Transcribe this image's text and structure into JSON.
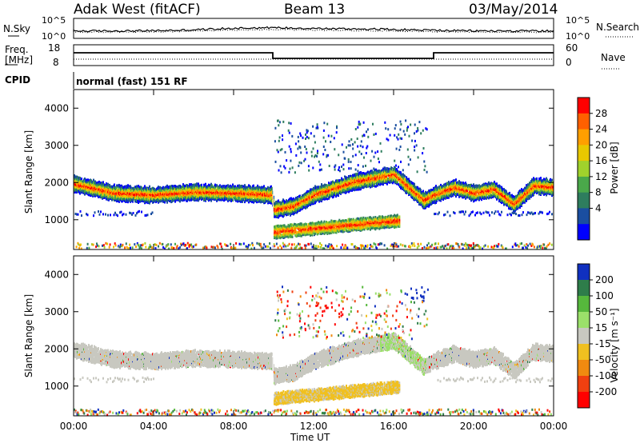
{
  "header": {
    "station": "Adak West (fitACF)",
    "beam": "Beam 13",
    "date": "03/May/2014"
  },
  "panels": {
    "nsky_label": "N.Sky",
    "nsearch_label": "N.Search",
    "noise_ticks": [
      "10^5",
      "10^0"
    ],
    "freq_label_1": "Freq.",
    "freq_label_2": "[MHz]",
    "freq_ticks": [
      "18",
      "8"
    ],
    "nave_label": "Nave",
    "nave_ticks": [
      "60",
      "0"
    ],
    "cpid_label": "CPID",
    "cpid_value": "normal (fast) 151 RF"
  },
  "chart_data": [
    {
      "type": "heatmap",
      "name": "power",
      "ylabel": "Slant Range [km]",
      "colorbar_label": "Power [dB]",
      "colorbar_ticks": [
        "28",
        "24",
        "20",
        "16",
        "12",
        "8",
        "4"
      ],
      "colorbar_colors": [
        "#ff0000",
        "#ff6000",
        "#ff9f00",
        "#e8c800",
        "#a0d22c",
        "#4aa84a",
        "#2e7d5e",
        "#1a4ea0",
        "#0000ff"
      ],
      "ylim": [
        200,
        4500
      ],
      "yticks": [
        1000,
        2000,
        3000,
        4000
      ],
      "xlim": [
        0,
        24
      ],
      "features": [
        {
          "label": "main band",
          "t": [
            0,
            2,
            4,
            6,
            8,
            9.9,
            10,
            11,
            12,
            14,
            16,
            17.5,
            18,
            19,
            20,
            21,
            22,
            23,
            24
          ],
          "range_km": [
            2000,
            1750,
            1700,
            1780,
            1750,
            1700,
            1300,
            1400,
            1700,
            2050,
            2250,
            1550,
            1700,
            1900,
            1750,
            1850,
            1450,
            1950,
            1900
          ]
        },
        {
          "label": "lower band",
          "t": [
            10,
            12,
            14,
            16
          ],
          "range_km": [
            700,
            800,
            900,
            1000
          ]
        }
      ]
    },
    {
      "type": "heatmap",
      "name": "velocity",
      "ylabel": "Slant Range [km]",
      "xlabel": "Time UT",
      "colorbar_label": "Velocity [m s⁻¹]",
      "colorbar_ticks": [
        "200",
        "100",
        "50",
        "15",
        "-15",
        "-50",
        "-100",
        "-200"
      ],
      "colorbar_colors": [
        "#1030c0",
        "#2e7d4a",
        "#56b83c",
        "#9be06a",
        "#c8c8c0",
        "#f0c020",
        "#f08a10",
        "#f04010",
        "#ff0000"
      ],
      "ylim": [
        200,
        4500
      ],
      "yticks": [
        1000,
        2000,
        3000,
        4000
      ],
      "xlim": [
        0,
        24
      ],
      "xticks": [
        "00:00",
        "04:00",
        "08:00",
        "12:00",
        "16:00",
        "20:00",
        "00:00"
      ]
    }
  ]
}
